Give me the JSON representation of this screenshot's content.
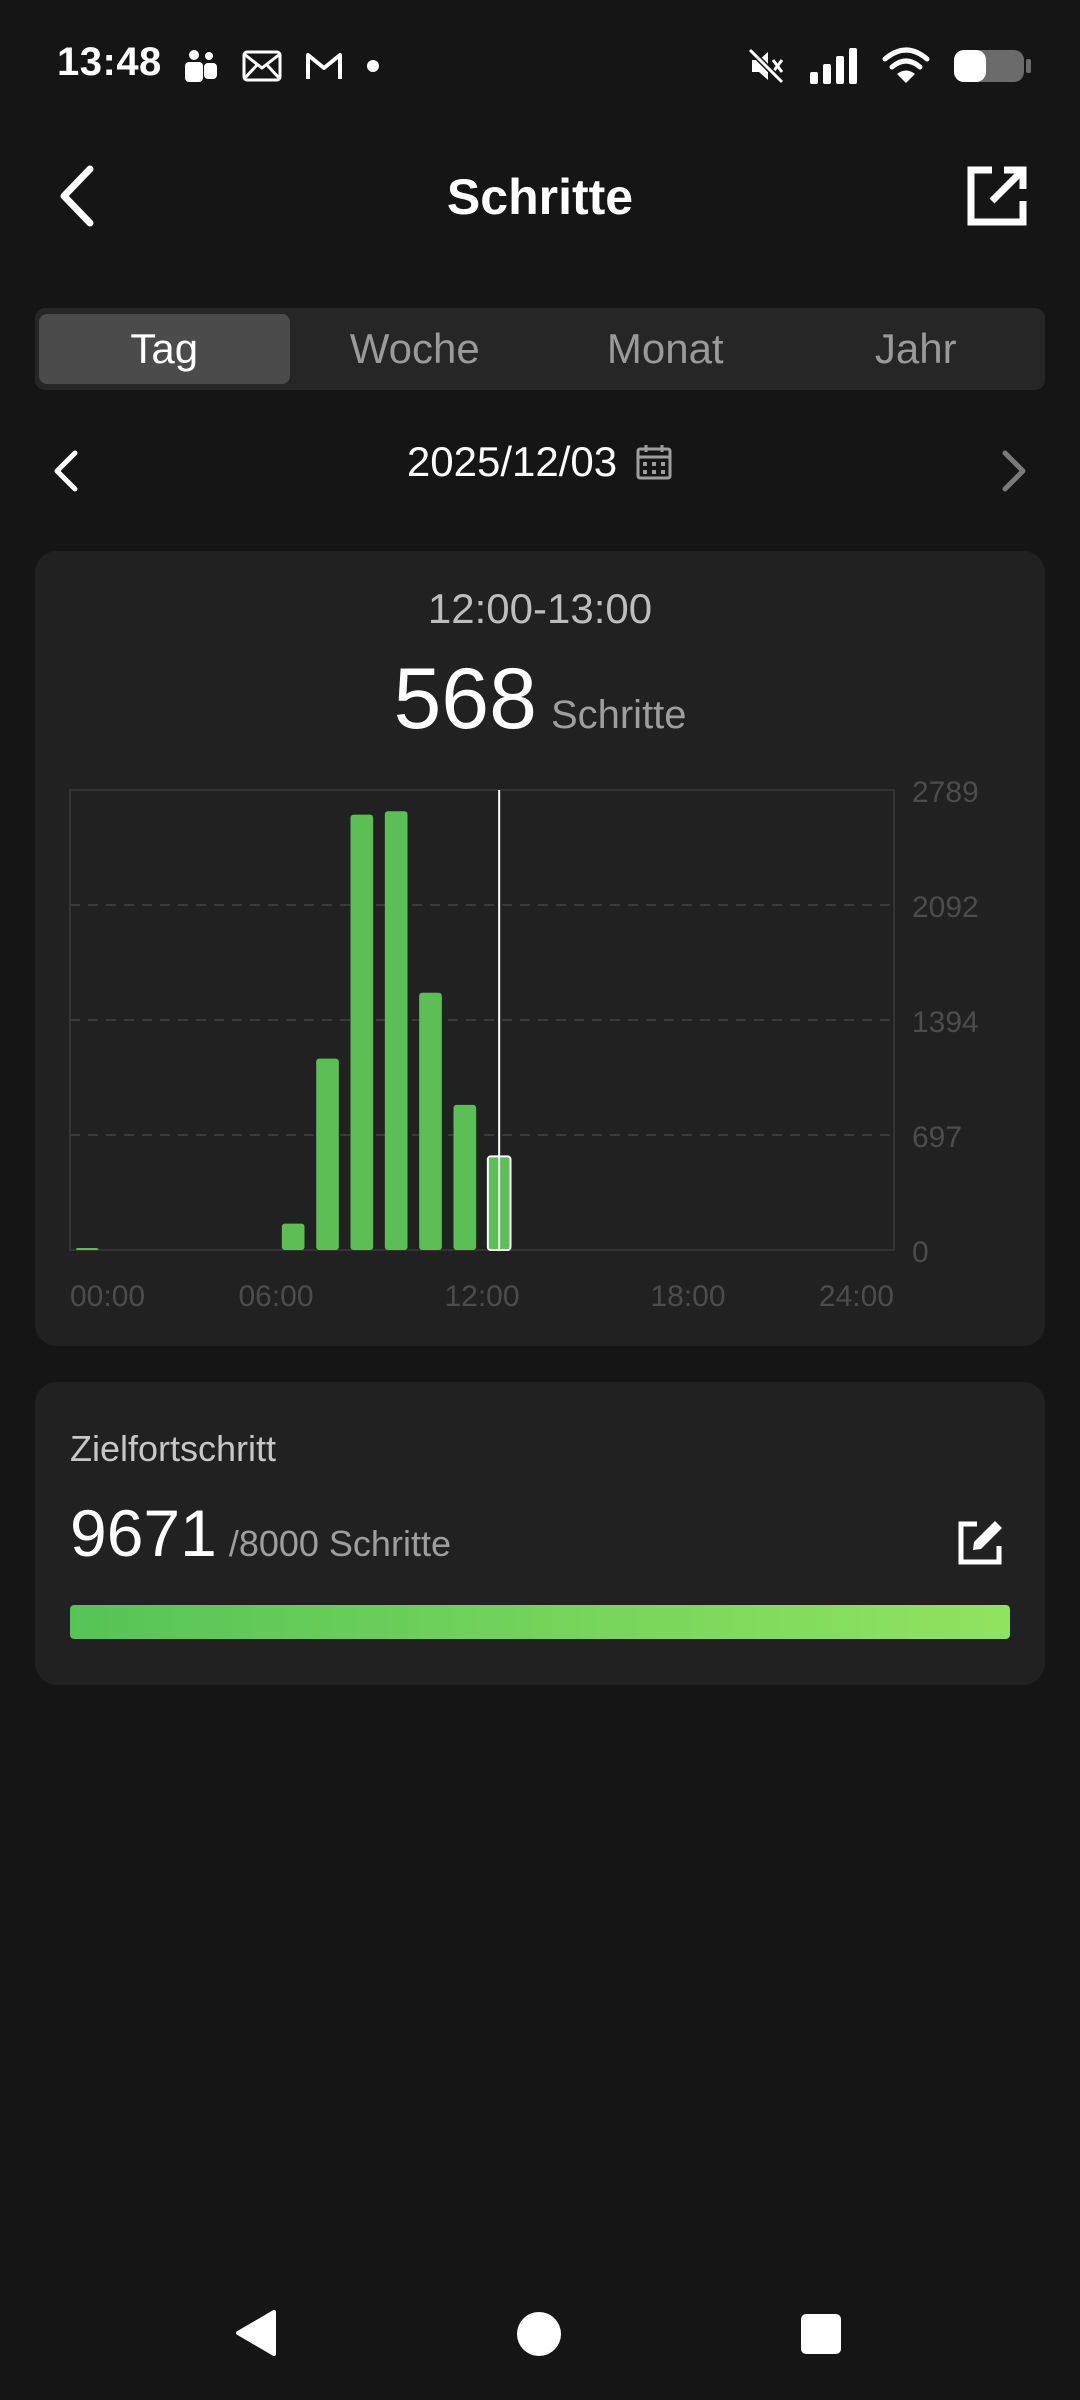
{
  "status_bar": {
    "time": "13:48",
    "left_icons": [
      "teams-icon",
      "mail-icon",
      "gmail-icon",
      "dot-icon"
    ],
    "right_icons": [
      "mute-icon",
      "signal-icon",
      "wifi-icon",
      "battery-icon"
    ],
    "battery_level": 0.45
  },
  "header": {
    "title": "Schritte",
    "back_icon": "back-chevron-icon",
    "share_icon": "share-icon"
  },
  "tabs": [
    {
      "label": "Tag",
      "active": true
    },
    {
      "label": "Woche",
      "active": false
    },
    {
      "label": "Monat",
      "active": false
    },
    {
      "label": "Jahr",
      "active": false
    }
  ],
  "date_nav": {
    "date": "2025/12/03",
    "calendar_icon": "calendar-icon"
  },
  "chart_card": {
    "selected_range": "12:00-13:00",
    "selected_value": "568",
    "unit": "Schritte"
  },
  "chart_data": {
    "type": "bar",
    "x": [
      "00:00",
      "01:00",
      "02:00",
      "03:00",
      "04:00",
      "05:00",
      "06:00",
      "07:00",
      "08:00",
      "09:00",
      "10:00",
      "11:00",
      "12:00"
    ],
    "values": [
      10,
      0,
      0,
      0,
      0,
      0,
      160,
      1160,
      2640,
      2660,
      1560,
      880,
      568
    ],
    "selected_index": 12,
    "x_tick_labels": [
      "00:00",
      "06:00",
      "12:00",
      "18:00",
      "24:00"
    ],
    "y_tick_labels": [
      "0",
      "697",
      "1394",
      "2092",
      "2789"
    ],
    "ylim": [
      0,
      2789
    ],
    "xlim_hours": [
      0,
      24
    ],
    "grid": true,
    "bar_color": "#5cbf55",
    "selected_bar_color": "#5cbf55"
  },
  "goal": {
    "title": "Zielfortschritt",
    "value": "9671",
    "target_text": "/8000 Schritte",
    "progress": 1.0,
    "edit_icon": "edit-icon",
    "colors": {
      "start": "#55c456",
      "end": "#91e35f"
    }
  },
  "nav_bar": {
    "back_icon": "nav-back-icon",
    "home_icon": "nav-home-icon",
    "recents_icon": "nav-recents-icon"
  }
}
